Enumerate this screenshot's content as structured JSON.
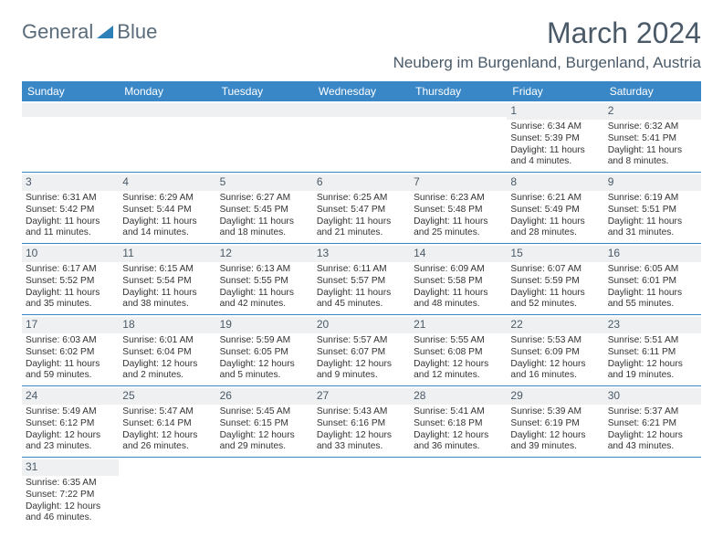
{
  "logo": {
    "text1": "General",
    "text2": "Blue"
  },
  "title": "March 2024",
  "location": "Neuberg im Burgenland, Burgenland, Austria",
  "colors": {
    "header_bg": "#3a87c7",
    "header_fg": "#ffffff",
    "shaded": "#eef0f2",
    "rule": "#3a87c7",
    "muted": "#4a5a68"
  },
  "weekdays": [
    "Sunday",
    "Monday",
    "Tuesday",
    "Wednesday",
    "Thursday",
    "Friday",
    "Saturday"
  ],
  "weeks": [
    [
      null,
      null,
      null,
      null,
      null,
      {
        "n": "1",
        "sr": "6:34 AM",
        "ss": "5:39 PM",
        "dl": "11 hours and 4 minutes."
      },
      {
        "n": "2",
        "sr": "6:32 AM",
        "ss": "5:41 PM",
        "dl": "11 hours and 8 minutes."
      }
    ],
    [
      {
        "n": "3",
        "sr": "6:31 AM",
        "ss": "5:42 PM",
        "dl": "11 hours and 11 minutes."
      },
      {
        "n": "4",
        "sr": "6:29 AM",
        "ss": "5:44 PM",
        "dl": "11 hours and 14 minutes."
      },
      {
        "n": "5",
        "sr": "6:27 AM",
        "ss": "5:45 PM",
        "dl": "11 hours and 18 minutes."
      },
      {
        "n": "6",
        "sr": "6:25 AM",
        "ss": "5:47 PM",
        "dl": "11 hours and 21 minutes."
      },
      {
        "n": "7",
        "sr": "6:23 AM",
        "ss": "5:48 PM",
        "dl": "11 hours and 25 minutes."
      },
      {
        "n": "8",
        "sr": "6:21 AM",
        "ss": "5:49 PM",
        "dl": "11 hours and 28 minutes."
      },
      {
        "n": "9",
        "sr": "6:19 AM",
        "ss": "5:51 PM",
        "dl": "11 hours and 31 minutes."
      }
    ],
    [
      {
        "n": "10",
        "sr": "6:17 AM",
        "ss": "5:52 PM",
        "dl": "11 hours and 35 minutes."
      },
      {
        "n": "11",
        "sr": "6:15 AM",
        "ss": "5:54 PM",
        "dl": "11 hours and 38 minutes."
      },
      {
        "n": "12",
        "sr": "6:13 AM",
        "ss": "5:55 PM",
        "dl": "11 hours and 42 minutes."
      },
      {
        "n": "13",
        "sr": "6:11 AM",
        "ss": "5:57 PM",
        "dl": "11 hours and 45 minutes."
      },
      {
        "n": "14",
        "sr": "6:09 AM",
        "ss": "5:58 PM",
        "dl": "11 hours and 48 minutes."
      },
      {
        "n": "15",
        "sr": "6:07 AM",
        "ss": "5:59 PM",
        "dl": "11 hours and 52 minutes."
      },
      {
        "n": "16",
        "sr": "6:05 AM",
        "ss": "6:01 PM",
        "dl": "11 hours and 55 minutes."
      }
    ],
    [
      {
        "n": "17",
        "sr": "6:03 AM",
        "ss": "6:02 PM",
        "dl": "11 hours and 59 minutes."
      },
      {
        "n": "18",
        "sr": "6:01 AM",
        "ss": "6:04 PM",
        "dl": "12 hours and 2 minutes."
      },
      {
        "n": "19",
        "sr": "5:59 AM",
        "ss": "6:05 PM",
        "dl": "12 hours and 5 minutes."
      },
      {
        "n": "20",
        "sr": "5:57 AM",
        "ss": "6:07 PM",
        "dl": "12 hours and 9 minutes."
      },
      {
        "n": "21",
        "sr": "5:55 AM",
        "ss": "6:08 PM",
        "dl": "12 hours and 12 minutes."
      },
      {
        "n": "22",
        "sr": "5:53 AM",
        "ss": "6:09 PM",
        "dl": "12 hours and 16 minutes."
      },
      {
        "n": "23",
        "sr": "5:51 AM",
        "ss": "6:11 PM",
        "dl": "12 hours and 19 minutes."
      }
    ],
    [
      {
        "n": "24",
        "sr": "5:49 AM",
        "ss": "6:12 PM",
        "dl": "12 hours and 23 minutes."
      },
      {
        "n": "25",
        "sr": "5:47 AM",
        "ss": "6:14 PM",
        "dl": "12 hours and 26 minutes."
      },
      {
        "n": "26",
        "sr": "5:45 AM",
        "ss": "6:15 PM",
        "dl": "12 hours and 29 minutes."
      },
      {
        "n": "27",
        "sr": "5:43 AM",
        "ss": "6:16 PM",
        "dl": "12 hours and 33 minutes."
      },
      {
        "n": "28",
        "sr": "5:41 AM",
        "ss": "6:18 PM",
        "dl": "12 hours and 36 minutes."
      },
      {
        "n": "29",
        "sr": "5:39 AM",
        "ss": "6:19 PM",
        "dl": "12 hours and 39 minutes."
      },
      {
        "n": "30",
        "sr": "5:37 AM",
        "ss": "6:21 PM",
        "dl": "12 hours and 43 minutes."
      }
    ],
    [
      {
        "n": "31",
        "sr": "6:35 AM",
        "ss": "7:22 PM",
        "dl": "12 hours and 46 minutes."
      },
      null,
      null,
      null,
      null,
      null,
      null
    ]
  ],
  "labels": {
    "sunrise": "Sunrise: ",
    "sunset": "Sunset: ",
    "daylight": "Daylight: "
  }
}
